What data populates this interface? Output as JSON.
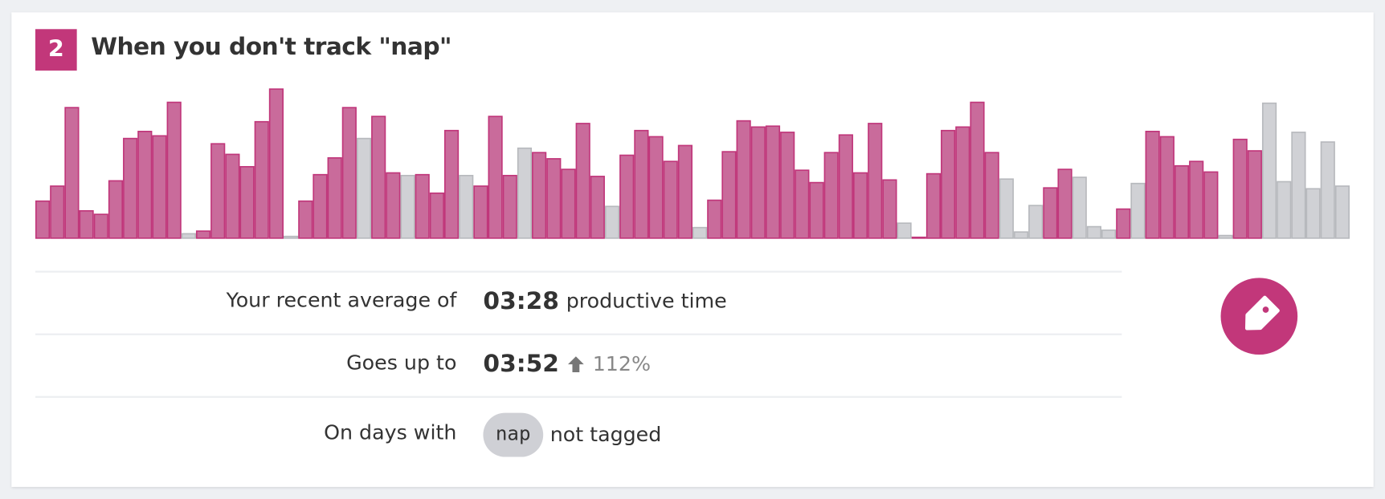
{
  "card": {
    "badge": "2",
    "title": "When you don't track \"nap\"",
    "rows": [
      {
        "label": "Your recent average of",
        "value": "03:28",
        "note": "productive time"
      },
      {
        "label": "Goes up to",
        "value": "03:52",
        "change": "112%"
      },
      {
        "label": "On days with",
        "tag": "nap",
        "note": "not tagged"
      }
    ]
  },
  "chart_data": {
    "type": "bar",
    "ylim": [
      0,
      170
    ],
    "values": [
      42,
      59,
      148,
      31,
      27,
      65,
      113,
      121,
      116,
      154,
      5,
      8,
      107,
      95,
      81,
      132,
      169,
      2,
      42,
      72,
      91,
      148,
      113,
      138,
      74,
      71,
      72,
      51,
      122,
      71,
      59,
      138,
      71,
      102,
      97,
      90,
      78,
      130,
      70,
      36,
      94,
      122,
      115,
      87,
      105,
      12,
      43,
      98,
      133,
      126,
      127,
      120,
      77,
      63,
      97,
      117,
      74,
      130,
      66,
      17,
      1,
      73,
      122,
      126,
      154,
      97,
      67,
      7,
      37,
      57,
      78,
      69,
      13,
      9,
      33,
      62,
      121,
      115,
      82,
      87,
      75,
      3,
      112,
      99,
      153,
      64,
      120,
      56,
      109,
      59
    ],
    "colors": [
      "#c96b9b",
      "#c96b9b",
      "#c96b9b",
      "#c96b9b",
      "#c96b9b",
      "#c96b9b",
      "#c96b9b",
      "#c96b9b",
      "#c96b9b",
      "#c96b9b",
      "#d0d1d5",
      "#c96b9b",
      "#c96b9b",
      "#c96b9b",
      "#c96b9b",
      "#c96b9b",
      "#c96b9b",
      "#d0d1d5",
      "#c96b9b",
      "#c96b9b",
      "#c96b9b",
      "#c96b9b",
      "#d0d1d5",
      "#c96b9b",
      "#c96b9b",
      "#d0d1d5",
      "#c96b9b",
      "#c96b9b",
      "#c96b9b",
      "#d0d1d5",
      "#c96b9b",
      "#c96b9b",
      "#c96b9b",
      "#d0d1d5",
      "#c96b9b",
      "#c96b9b",
      "#c96b9b",
      "#c96b9b",
      "#c96b9b",
      "#d0d1d5",
      "#c96b9b",
      "#c96b9b",
      "#c96b9b",
      "#c96b9b",
      "#c96b9b",
      "#d0d1d5",
      "#c96b9b",
      "#c96b9b",
      "#c96b9b",
      "#c96b9b",
      "#c96b9b",
      "#c96b9b",
      "#c96b9b",
      "#c96b9b",
      "#c96b9b",
      "#c96b9b",
      "#c96b9b",
      "#c96b9b",
      "#c96b9b",
      "#d0d1d5",
      "#c96b9b",
      "#c96b9b",
      "#c96b9b",
      "#c96b9b",
      "#c96b9b",
      "#c96b9b",
      "#d0d1d5",
      "#d0d1d5",
      "#d0d1d5",
      "#c96b9b",
      "#c96b9b",
      "#d0d1d5",
      "#d0d1d5",
      "#d0d1d5",
      "#c96b9b",
      "#d0d1d5",
      "#c96b9b",
      "#c96b9b",
      "#c96b9b",
      "#c96b9b",
      "#c96b9b",
      "#d0d1d5",
      "#c96b9b",
      "#c96b9b",
      "#d0d1d5",
      "#d0d1d5",
      "#d0d1d5",
      "#d0d1d5",
      "#d0d1d5",
      "#d0d1d5"
    ]
  }
}
